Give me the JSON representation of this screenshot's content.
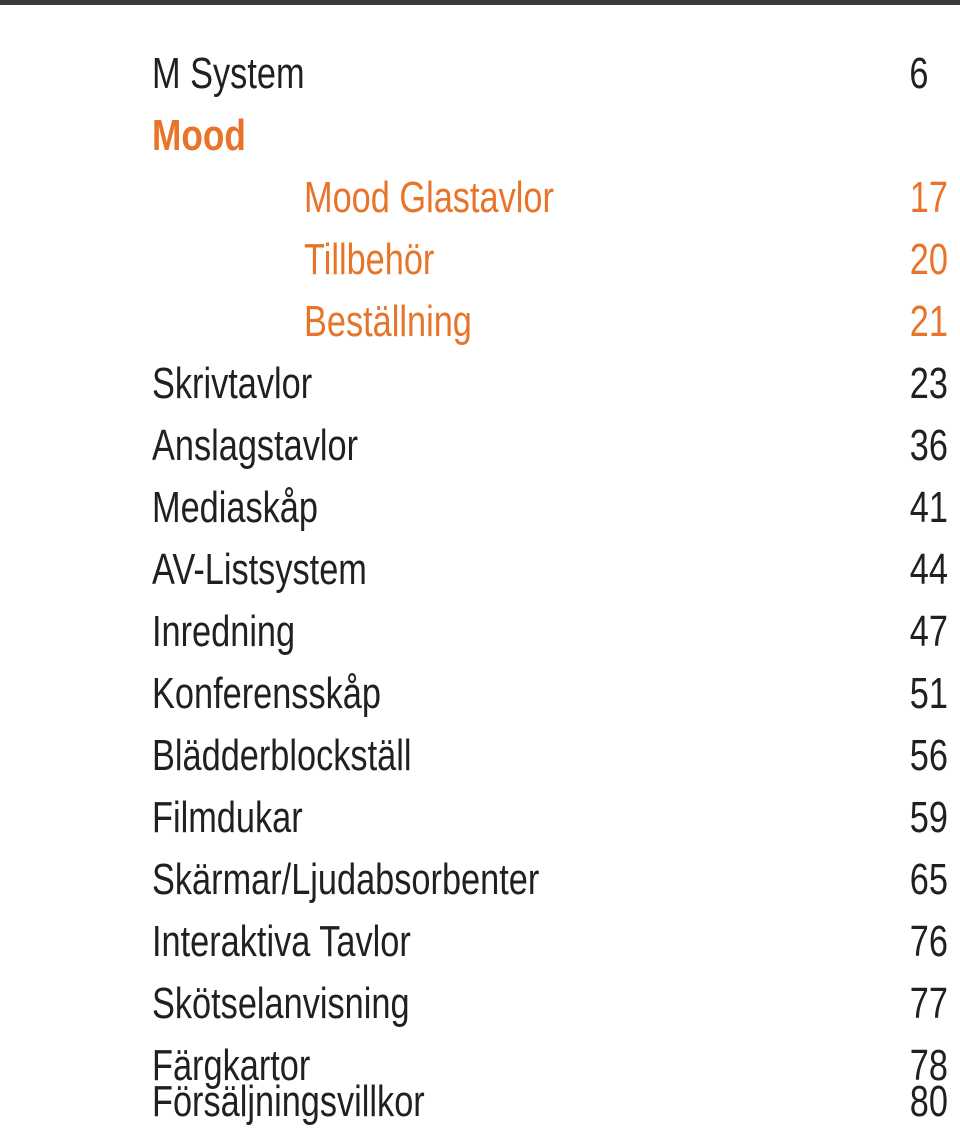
{
  "accent_color": "#e8742a",
  "text_color": "#231f20",
  "toc": {
    "m_system": {
      "label": "M System",
      "page": "6"
    },
    "mood": {
      "label": "Mood"
    },
    "mood_glastavlor": {
      "label": "Mood Glastavlor",
      "page": "17"
    },
    "tillbehor": {
      "label": "Tillbehör",
      "page": "20"
    },
    "bestallning": {
      "label": "Beställning",
      "page": "21"
    },
    "skrivtavlor": {
      "label": "Skrivtavlor",
      "page": "23"
    },
    "anslagstavlor": {
      "label": "Anslagstavlor",
      "page": "36"
    },
    "mediaskap": {
      "label": "Mediaskåp",
      "page": "41"
    },
    "av_listsystem": {
      "label": "AV-Listsystem",
      "page": "44"
    },
    "inredning": {
      "label": "Inredning",
      "page": "47"
    },
    "konferensskap": {
      "label": "Konferensskåp",
      "page": "51"
    },
    "bladderblockstall": {
      "label": "Blädderblockställ",
      "page": "56"
    },
    "filmdukar": {
      "label": "Filmdukar",
      "page": "59"
    },
    "skarmar": {
      "label": "Skärmar/Ljudabsorbenter",
      "page": "65"
    },
    "interaktiva_tavlor": {
      "label": "Interaktiva Tavlor",
      "page": "76"
    },
    "skotselanvisning": {
      "label": "Skötselanvisning",
      "page": "77"
    },
    "fargkartor": {
      "label": "Färgkartor",
      "page": "78"
    },
    "forsaljningsvillkor": {
      "label": "Försäljningsvillkor",
      "page": "80"
    }
  }
}
